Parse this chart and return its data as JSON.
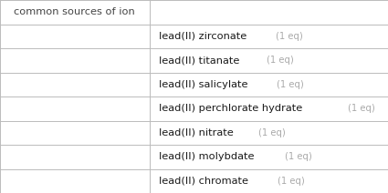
{
  "header": "common sources of ion",
  "rows": [
    "lead(II) zirconate",
    "lead(II) titanate",
    "lead(II) salicylate",
    "lead(II) perchlorate hydrate",
    "lead(II) nitrate",
    "lead(II) molybdate",
    "lead(II) chromate"
  ],
  "eq_label": "  (1 eq)",
  "bg_color": "#ffffff",
  "border_color": "#bbbbbb",
  "header_text_color": "#444444",
  "row_text_color": "#1a1a1a",
  "eq_text_color": "#aaaaaa",
  "col_split": 0.385,
  "fig_width": 4.25,
  "fig_height": 2.12,
  "dpi": 100,
  "main_fontsize": 8.2,
  "eq_fontsize": 7.2,
  "header_fontsize": 8.2
}
